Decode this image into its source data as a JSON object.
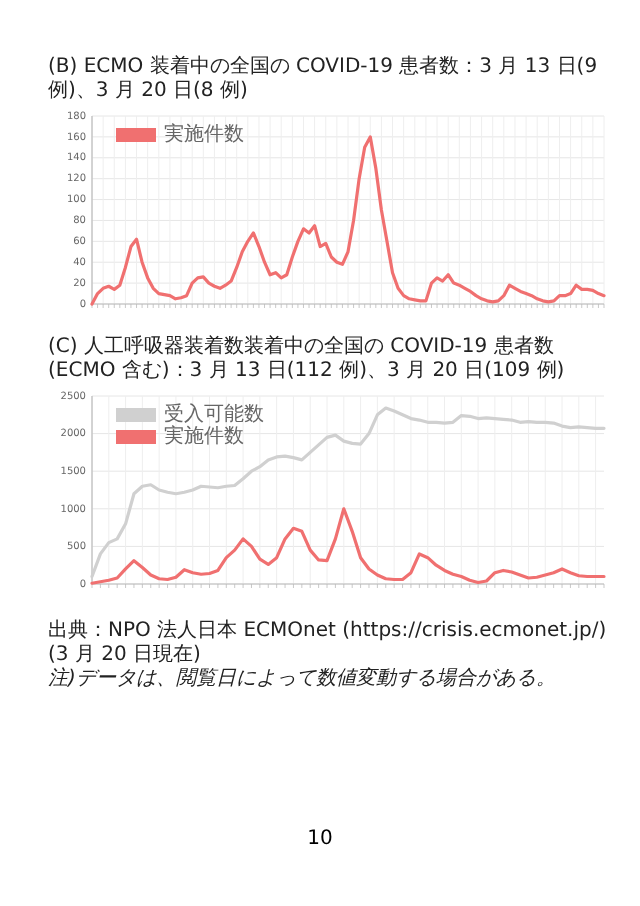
{
  "chart_data": [
    {
      "type": "line",
      "title": "(B) ECMO 装着中の全国の COVID-19 患者数：3 月 13 日(9 例)、3 月 20 日(8 例)",
      "categories": [
        null,
        null,
        null,
        null,
        null,
        null,
        null,
        null,
        null,
        null,
        null,
        null,
        null,
        null,
        null,
        null,
        null,
        null,
        null,
        null,
        null,
        null,
        null,
        null,
        null,
        null,
        null,
        null,
        null,
        null,
        null,
        null,
        null,
        null,
        null,
        null,
        null,
        null,
        null,
        null,
        null,
        null,
        null,
        null,
        null,
        null,
        null,
        null,
        null,
        null,
        null,
        null,
        null,
        null,
        null,
        null,
        null,
        null,
        null,
        null,
        null,
        null,
        null,
        null,
        null,
        null,
        null,
        null,
        null,
        null,
        null,
        null,
        null,
        null,
        null,
        null,
        null,
        null,
        null,
        null,
        null,
        null,
        null,
        null,
        null,
        null,
        null,
        null,
        null,
        null,
        null,
        null,
        null
      ],
      "series": [
        {
          "name": "実施件数",
          "color": "#f07070",
          "values": [
            0,
            10,
            15,
            17,
            14,
            18,
            35,
            55,
            62,
            40,
            25,
            15,
            10,
            9,
            8,
            5,
            6,
            8,
            20,
            25,
            26,
            20,
            17,
            15,
            18,
            22,
            35,
            50,
            60,
            68,
            55,
            40,
            28,
            30,
            25,
            28,
            45,
            60,
            72,
            68,
            75,
            55,
            58,
            45,
            40,
            38,
            50,
            80,
            120,
            150,
            160,
            130,
            90,
            60,
            30,
            15,
            8,
            5,
            4,
            3,
            3,
            20,
            25,
            22,
            28,
            20,
            18,
            15,
            12,
            8,
            5,
            3,
            2,
            3,
            8,
            18,
            15,
            12,
            10,
            8,
            5,
            3,
            2,
            3,
            8,
            8,
            10,
            18,
            14,
            14,
            13,
            10,
            8
          ]
        }
      ],
      "ylim": [
        0,
        180
      ],
      "yticks": [
        0,
        20,
        40,
        60,
        80,
        100,
        120,
        140,
        160,
        180
      ],
      "grid": true,
      "legend": "top left",
      "line_style": "solid"
    },
    {
      "type": "line",
      "title": "(C) 人工呼吸器装着数装着中の全国の COVID-19 患者数(ECMO 含む)：3 月 13 日(112 例)、3 月 20 日(109 例)",
      "categories": [
        null,
        null,
        null,
        null,
        null,
        null,
        null,
        null,
        null,
        null,
        null,
        null,
        null,
        null,
        null,
        null,
        null,
        null,
        null,
        null,
        null,
        null,
        null,
        null,
        null,
        null,
        null,
        null,
        null,
        null,
        null,
        null,
        null,
        null,
        null,
        null,
        null,
        null,
        null,
        null,
        null,
        null,
        null,
        null,
        null,
        null,
        null,
        null,
        null,
        null,
        null,
        null,
        null,
        null,
        null,
        null,
        null,
        null,
        null,
        null,
        null,
        null
      ],
      "series": [
        {
          "name": "受入可能数",
          "color": "#d0d0d0",
          "values": [
            100,
            400,
            550,
            600,
            800,
            1200,
            1300,
            1320,
            1250,
            1220,
            1200,
            1220,
            1250,
            1300,
            1290,
            1280,
            1300,
            1310,
            1400,
            1500,
            1560,
            1650,
            1690,
            1700,
            1680,
            1650,
            1750,
            1850,
            1950,
            1980,
            1900,
            1870,
            1860,
            2000,
            2250,
            2340,
            2300,
            2250,
            2200,
            2180,
            2150,
            2150,
            2140,
            2150,
            2240,
            2230,
            2200,
            2210,
            2200,
            2190,
            2180,
            2150,
            2160,
            2150,
            2150,
            2140,
            2100,
            2080,
            2090,
            2080,
            2070,
            2070
          ]
        },
        {
          "name": "実施件数",
          "color": "#f07070",
          "values": [
            10,
            30,
            50,
            80,
            200,
            310,
            220,
            120,
            70,
            60,
            90,
            190,
            150,
            130,
            140,
            180,
            350,
            450,
            600,
            500,
            330,
            260,
            350,
            600,
            740,
            700,
            450,
            320,
            310,
            600,
            1000,
            700,
            350,
            200,
            120,
            70,
            60,
            60,
            150,
            400,
            350,
            250,
            180,
            130,
            100,
            50,
            20,
            40,
            150,
            180,
            160,
            120,
            80,
            90,
            120,
            150,
            200,
            150,
            110,
            100,
            100,
            100
          ]
        }
      ],
      "ylim": [
        0,
        2500
      ],
      "yticks": [
        0,
        500,
        1000,
        1500,
        2000,
        2500
      ],
      "grid": true,
      "legend": "top left",
      "line_style": "solid",
      "annotations": [
        "出典：NPO 法人日本 ECMOnet (https://crisis.ecmonet.jp/)(3 月 20 日現在)",
        "注)データは、閲覧日によって数値変動する場合がある。",
        "10"
      ]
    }
  ]
}
